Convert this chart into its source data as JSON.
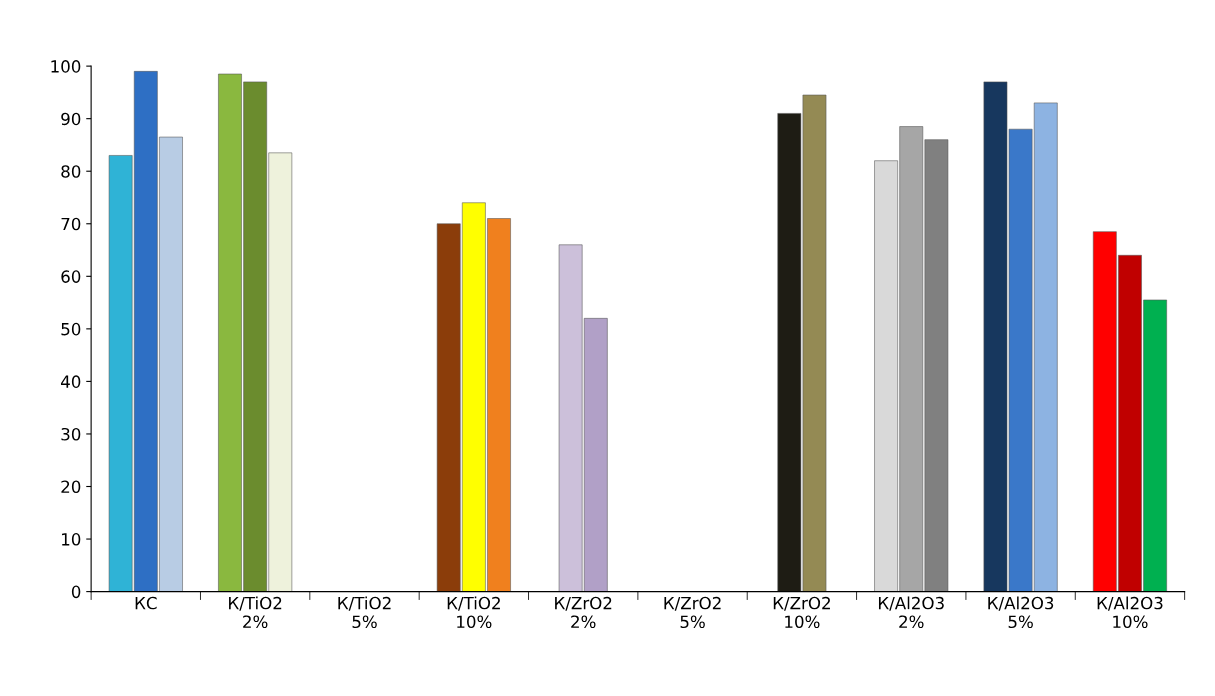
{
  "chart_data": {
    "type": "bar",
    "categories": [
      "КС",
      "К/TiO2\n2%",
      "К/TiO2\n5%",
      "К/TiO2\n10%",
      "К/ZrO2\n2%",
      "К/ZrO2\n5%",
      "К/ZrO2\n10%",
      "К/Al2O3\n2%",
      "К/Al2O3\n5%",
      "К/Al2O3\n10%"
    ],
    "series": [
      {
        "values": [
          83,
          98.5,
          null,
          70,
          66,
          null,
          91,
          82,
          97,
          68.5
        ],
        "colors": [
          "#2fb3d6",
          "#8ab83f",
          "#8ab83f",
          "#8b3d0a",
          "#ccc0da",
          "#ccc0da",
          "#1e1c14",
          "#d9d9d9",
          "#17375e",
          "#ff0000"
        ]
      },
      {
        "values": [
          99,
          97,
          null,
          74,
          52,
          null,
          94.5,
          88.5,
          88,
          64
        ],
        "colors": [
          "#2e6fc4",
          "#6b8c2e",
          "#6b8c2e",
          "#ffff00",
          "#b1a0c7",
          "#b1a0c7",
          "#948a54",
          "#a6a6a6",
          "#3a78c9",
          "#c00000"
        ]
      },
      {
        "values": [
          86.5,
          83.5,
          null,
          71,
          null,
          null,
          null,
          86,
          93,
          55.5
        ],
        "colors": [
          "#b8cce4",
          "#eef2dc",
          "#eef2dc",
          "#f0801e",
          "#b1a0c7",
          "#b1a0c7",
          "#948a54",
          "#808080",
          "#8db3e2",
          "#00b050"
        ]
      }
    ],
    "ylim": [
      0,
      100
    ],
    "yticks": [
      0,
      10,
      20,
      30,
      40,
      50,
      60,
      70,
      80,
      90,
      100
    ],
    "grid": false,
    "legend": false
  }
}
